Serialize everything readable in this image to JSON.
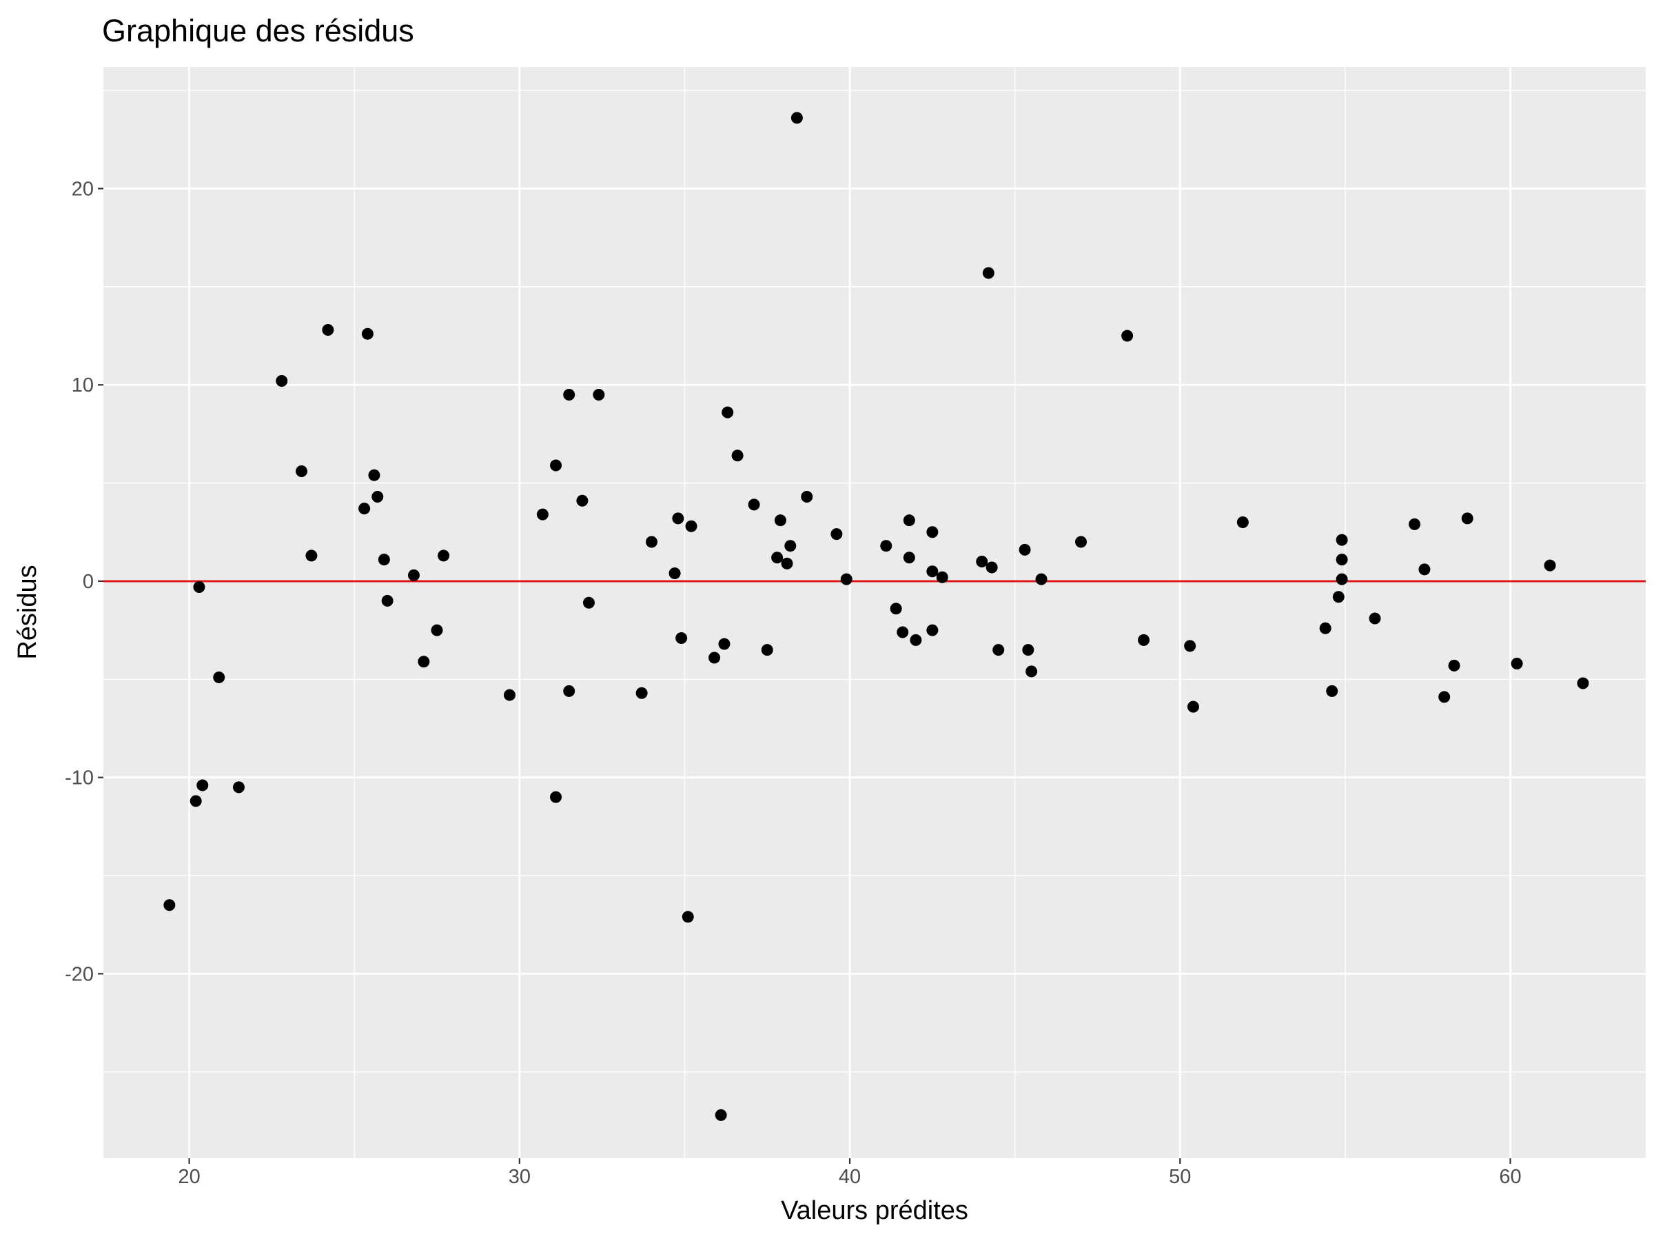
{
  "chart_data": {
    "type": "scatter",
    "title": "Graphique des résidus",
    "xlabel": "Valeurs prédites",
    "ylabel": "Résidus",
    "xlim": [
      17.4,
      64.1
    ],
    "ylim": [
      -29.4,
      26.2
    ],
    "xticks": [
      20,
      30,
      40,
      50,
      60
    ],
    "yticks": [
      -20,
      -10,
      0,
      10,
      20
    ],
    "xtick_labels": [
      "20",
      "30",
      "40",
      "50",
      "60"
    ],
    "ytick_labels": [
      "-20",
      "-10",
      "0",
      "10",
      "20"
    ],
    "grid": true,
    "legend": "none",
    "background_color": "#ebebeb",
    "grid_color": "#ffffff",
    "point_color": "#000000",
    "reference_line": {
      "y": 0,
      "color": "#e31a1c"
    },
    "points": [
      {
        "x": 19.4,
        "y": -16.5
      },
      {
        "x": 20.2,
        "y": -11.2
      },
      {
        "x": 20.4,
        "y": -10.4
      },
      {
        "x": 20.3,
        "y": -0.3
      },
      {
        "x": 20.9,
        "y": -4.9
      },
      {
        "x": 21.5,
        "y": -10.5
      },
      {
        "x": 22.8,
        "y": 10.2
      },
      {
        "x": 23.4,
        "y": 5.6
      },
      {
        "x": 23.7,
        "y": 1.3
      },
      {
        "x": 24.2,
        "y": 12.8
      },
      {
        "x": 25.3,
        "y": 3.7
      },
      {
        "x": 25.4,
        "y": 12.6
      },
      {
        "x": 25.6,
        "y": 5.4
      },
      {
        "x": 25.7,
        "y": 4.3
      },
      {
        "x": 25.9,
        "y": 1.1
      },
      {
        "x": 26.0,
        "y": -1.0
      },
      {
        "x": 26.8,
        "y": 0.3
      },
      {
        "x": 27.1,
        "y": -4.1
      },
      {
        "x": 27.5,
        "y": -2.5
      },
      {
        "x": 27.7,
        "y": 1.3
      },
      {
        "x": 29.7,
        "y": -5.8
      },
      {
        "x": 30.7,
        "y": 3.4
      },
      {
        "x": 31.1,
        "y": 5.9
      },
      {
        "x": 31.1,
        "y": -11.0
      },
      {
        "x": 31.5,
        "y": 9.5
      },
      {
        "x": 31.5,
        "y": -5.6
      },
      {
        "x": 31.9,
        "y": 4.1
      },
      {
        "x": 32.1,
        "y": -1.1
      },
      {
        "x": 32.4,
        "y": 9.5
      },
      {
        "x": 33.7,
        "y": -5.7
      },
      {
        "x": 34.0,
        "y": 2.0
      },
      {
        "x": 34.7,
        "y": 0.4
      },
      {
        "x": 34.8,
        "y": 3.2
      },
      {
        "x": 34.9,
        "y": -2.9
      },
      {
        "x": 35.1,
        "y": -17.1
      },
      {
        "x": 35.2,
        "y": 2.8
      },
      {
        "x": 35.9,
        "y": -3.9
      },
      {
        "x": 36.1,
        "y": -27.2
      },
      {
        "x": 36.2,
        "y": -3.2
      },
      {
        "x": 36.3,
        "y": 8.6
      },
      {
        "x": 36.6,
        "y": 6.4
      },
      {
        "x": 37.1,
        "y": 3.9
      },
      {
        "x": 37.5,
        "y": -3.5
      },
      {
        "x": 37.8,
        "y": 1.2
      },
      {
        "x": 37.9,
        "y": 3.1
      },
      {
        "x": 38.1,
        "y": 0.9
      },
      {
        "x": 38.2,
        "y": 1.8
      },
      {
        "x": 38.4,
        "y": 23.6
      },
      {
        "x": 38.7,
        "y": 4.3
      },
      {
        "x": 39.6,
        "y": 2.4
      },
      {
        "x": 39.9,
        "y": 0.1
      },
      {
        "x": 41.1,
        "y": 1.8
      },
      {
        "x": 41.4,
        "y": -1.4
      },
      {
        "x": 41.6,
        "y": -2.6
      },
      {
        "x": 41.8,
        "y": 3.1
      },
      {
        "x": 41.8,
        "y": 1.2
      },
      {
        "x": 42.0,
        "y": -3.0
      },
      {
        "x": 42.5,
        "y": 2.5
      },
      {
        "x": 42.5,
        "y": 0.5
      },
      {
        "x": 42.5,
        "y": -2.5
      },
      {
        "x": 42.8,
        "y": 0.2
      },
      {
        "x": 44.0,
        "y": 1.0
      },
      {
        "x": 44.2,
        "y": 15.7
      },
      {
        "x": 44.3,
        "y": 0.7
      },
      {
        "x": 44.5,
        "y": -3.5
      },
      {
        "x": 45.3,
        "y": 1.6
      },
      {
        "x": 45.4,
        "y": -3.5
      },
      {
        "x": 45.5,
        "y": -4.6
      },
      {
        "x": 45.8,
        "y": 0.1
      },
      {
        "x": 47.0,
        "y": 2.0
      },
      {
        "x": 48.4,
        "y": 12.5
      },
      {
        "x": 48.9,
        "y": -3.0
      },
      {
        "x": 50.3,
        "y": -3.3
      },
      {
        "x": 50.4,
        "y": -6.4
      },
      {
        "x": 51.9,
        "y": 3.0
      },
      {
        "x": 54.4,
        "y": -2.4
      },
      {
        "x": 54.6,
        "y": -5.6
      },
      {
        "x": 54.8,
        "y": -0.8
      },
      {
        "x": 54.9,
        "y": 1.1
      },
      {
        "x": 54.9,
        "y": 2.1
      },
      {
        "x": 54.9,
        "y": 0.1
      },
      {
        "x": 55.9,
        "y": -1.9
      },
      {
        "x": 57.1,
        "y": 2.9
      },
      {
        "x": 57.4,
        "y": 0.6
      },
      {
        "x": 58.0,
        "y": -5.9
      },
      {
        "x": 58.3,
        "y": -4.3
      },
      {
        "x": 58.7,
        "y": 3.2
      },
      {
        "x": 60.2,
        "y": -4.2
      },
      {
        "x": 61.2,
        "y": 0.8
      },
      {
        "x": 62.2,
        "y": -5.2
      }
    ]
  }
}
